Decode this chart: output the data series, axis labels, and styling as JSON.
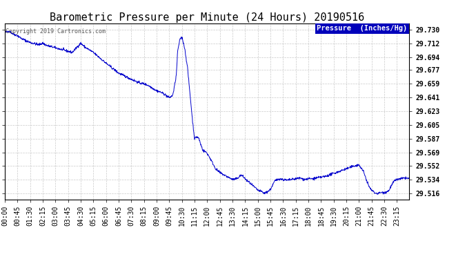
{
  "title": "Barometric Pressure per Minute (24 Hours) 20190516",
  "copyright_text": "Copyright 2019 Cartronics.com",
  "legend_label": "Pressure  (Inches/Hg)",
  "line_color": "#0000cc",
  "background_color": "#ffffff",
  "grid_color": "#bbbbbb",
  "yticks": [
    29.516,
    29.534,
    29.552,
    29.569,
    29.587,
    29.605,
    29.623,
    29.641,
    29.659,
    29.677,
    29.694,
    29.712,
    29.73
  ],
  "ylim": [
    29.508,
    29.738
  ],
  "xtick_labels": [
    "00:00",
    "00:45",
    "01:30",
    "02:15",
    "03:00",
    "03:45",
    "04:30",
    "05:15",
    "06:00",
    "06:45",
    "07:30",
    "08:15",
    "09:00",
    "09:45",
    "10:30",
    "11:15",
    "12:00",
    "12:45",
    "13:30",
    "14:15",
    "15:00",
    "15:45",
    "16:30",
    "17:15",
    "18:00",
    "18:45",
    "19:30",
    "20:15",
    "21:00",
    "21:45",
    "22:30",
    "23:15"
  ],
  "title_fontsize": 11,
  "tick_fontsize": 7,
  "legend_fontsize": 7.5,
  "copyright_fontsize": 6
}
